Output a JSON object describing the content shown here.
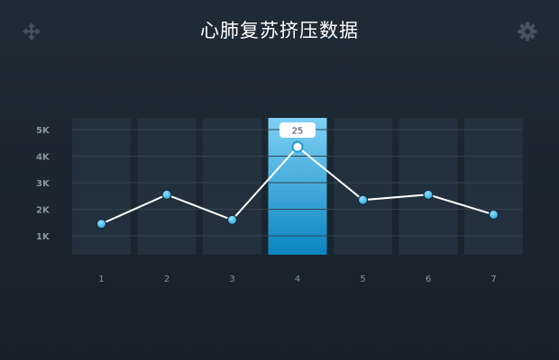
{
  "header": {
    "title": "心肺复苏挤压数据",
    "left_icon": "move-icon",
    "right_icon": "gear-icon"
  },
  "colors": {
    "selected_column_top": "#7fd1f5",
    "selected_column_bottom": "#0a85bf",
    "point": "#2aa6dc",
    "line": "#ffffff"
  },
  "chart_data": {
    "type": "line",
    "categories": [
      "1",
      "2",
      "3",
      "4",
      "5",
      "6",
      "7"
    ],
    "y_ticks": [
      "1K",
      "2K",
      "3K",
      "4K",
      "5K"
    ],
    "ylim": [
      0.6,
      5.5
    ],
    "values": [
      1.45,
      2.55,
      1.6,
      4.35,
      2.35,
      2.55,
      1.8
    ],
    "selected_index": 3,
    "tooltip": "25",
    "grid": true
  }
}
